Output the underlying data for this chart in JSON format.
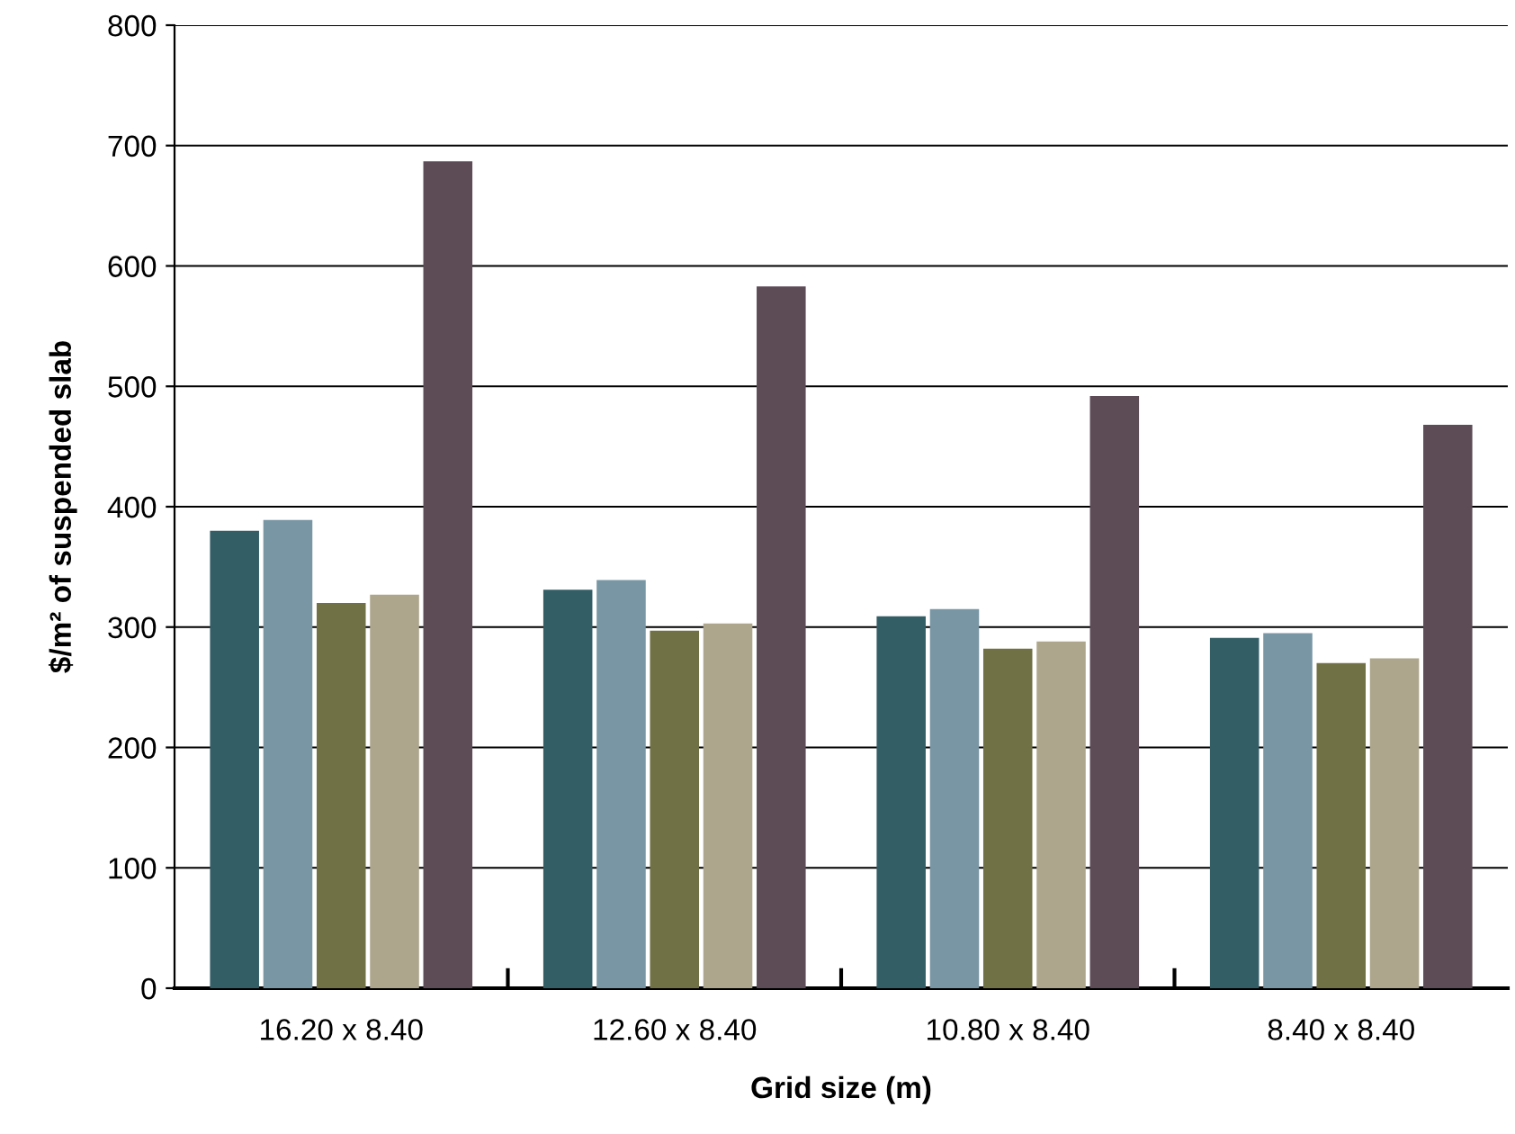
{
  "chart_data": {
    "type": "bar",
    "xlabel": "Grid size (m)",
    "ylabel": "$/m² of suspended slab",
    "categories": [
      "16.20 x 8.40",
      "12.60 x 8.40",
      "10.80 x 8.40",
      "8.40 x 8.40"
    ],
    "series": [
      {
        "color": "#345e66",
        "values": [
          380,
          331,
          309,
          291
        ]
      },
      {
        "color": "#7896a4",
        "values": [
          389,
          339,
          315,
          295
        ]
      },
      {
        "color": "#717146",
        "values": [
          320,
          297,
          282,
          270
        ]
      },
      {
        "color": "#aea68c",
        "values": [
          327,
          303,
          288,
          274
        ]
      },
      {
        "color": "#5d4b56",
        "values": [
          687,
          583,
          492,
          468
        ]
      }
    ],
    "ylim": [
      0,
      800
    ],
    "yticks": [
      0,
      100,
      200,
      300,
      400,
      500,
      600,
      700,
      800
    ],
    "grid": "y",
    "legend": false
  }
}
